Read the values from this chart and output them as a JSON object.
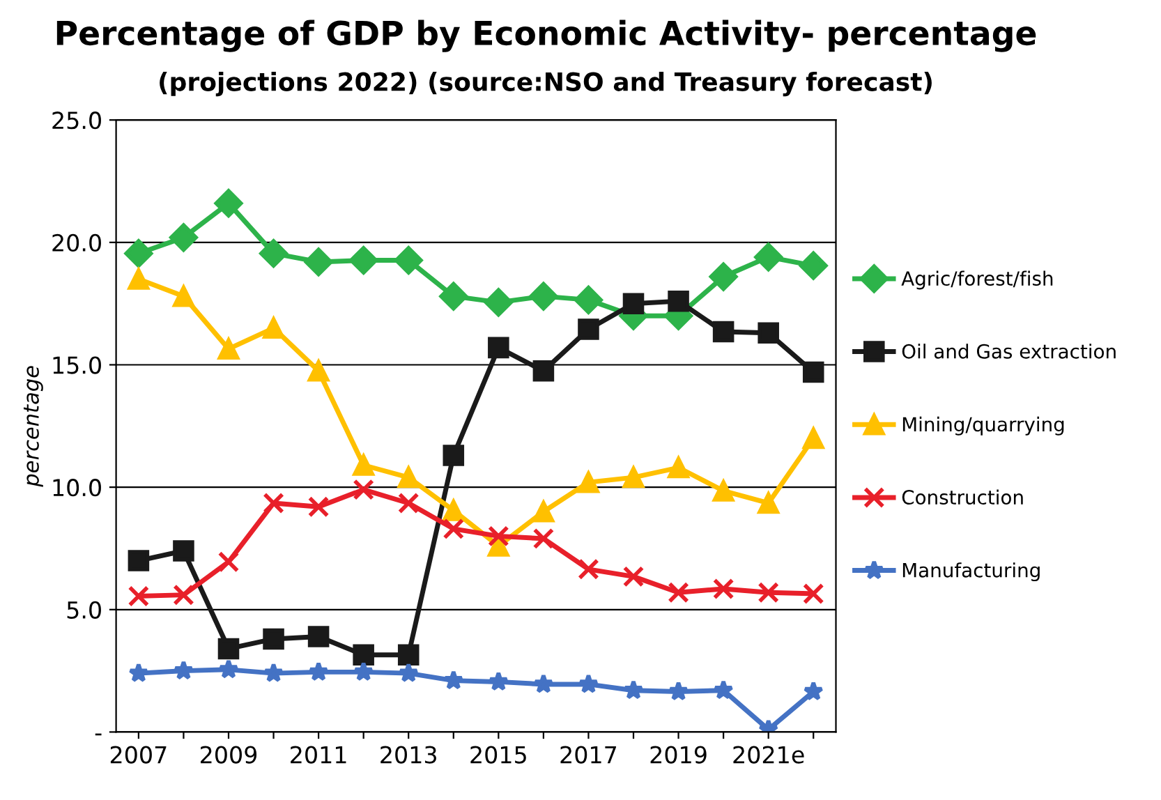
{
  "chart_data": {
    "type": "line",
    "title": "Percentage of GDP by Economic Activity- percentage",
    "subtitle": "(projections 2022) (source:NSO and Treasury forecast)",
    "ylabel": "percentage",
    "categories": [
      "2007",
      null,
      "2009",
      null,
      "2011",
      null,
      "2013",
      null,
      "2015",
      null,
      "2017",
      null,
      "2019",
      null,
      "2021e",
      null
    ],
    "series": [
      {
        "name": "Agric/forest/fish",
        "color": "#2db34a",
        "marker": "diamond",
        "values": [
          19.55,
          20.2,
          21.6,
          19.55,
          19.2,
          19.27,
          19.27,
          17.8,
          17.55,
          17.8,
          17.65,
          17.0,
          17.0,
          18.6,
          19.4,
          19.05
        ]
      },
      {
        "name": "Oil and Gas extraction",
        "color": "#1a1a1a",
        "marker": "square",
        "values": [
          7.0,
          7.4,
          3.4,
          3.8,
          3.9,
          3.15,
          3.15,
          11.3,
          15.7,
          14.75,
          16.45,
          17.5,
          17.6,
          16.35,
          16.3,
          14.7
        ]
      },
      {
        "name": "Mining/quarrying",
        "color": "#ffc000",
        "marker": "triangle",
        "values": [
          18.5,
          17.8,
          15.65,
          16.5,
          14.75,
          10.9,
          10.4,
          9.05,
          7.6,
          9.0,
          10.2,
          10.4,
          10.8,
          9.85,
          9.35,
          12.0
        ]
      },
      {
        "name": "Construction",
        "color": "#e8202a",
        "marker": "cross",
        "values": [
          5.55,
          5.6,
          6.95,
          9.35,
          9.2,
          9.9,
          9.35,
          8.3,
          8.0,
          7.9,
          6.65,
          6.35,
          5.7,
          5.85,
          5.7,
          5.65
        ]
      },
      {
        "name": "Manufacturing",
        "color": "#4472c4",
        "marker": "star",
        "values": [
          2.4,
          2.5,
          2.55,
          2.4,
          2.45,
          2.45,
          2.4,
          2.1,
          2.05,
          1.95,
          1.95,
          1.7,
          1.65,
          1.7,
          0.1,
          1.65
        ]
      }
    ],
    "ylim": [
      0,
      25
    ],
    "yticks": [
      {
        "value": 0,
        "label": "-"
      },
      {
        "value": 5,
        "label": "5.0"
      },
      {
        "value": 10,
        "label": "10.0"
      },
      {
        "value": 15,
        "label": "15.0"
      },
      {
        "value": 20,
        "label": "20.0"
      },
      {
        "value": 25,
        "label": "25.0"
      }
    ],
    "grid": "y",
    "legend": "right"
  }
}
